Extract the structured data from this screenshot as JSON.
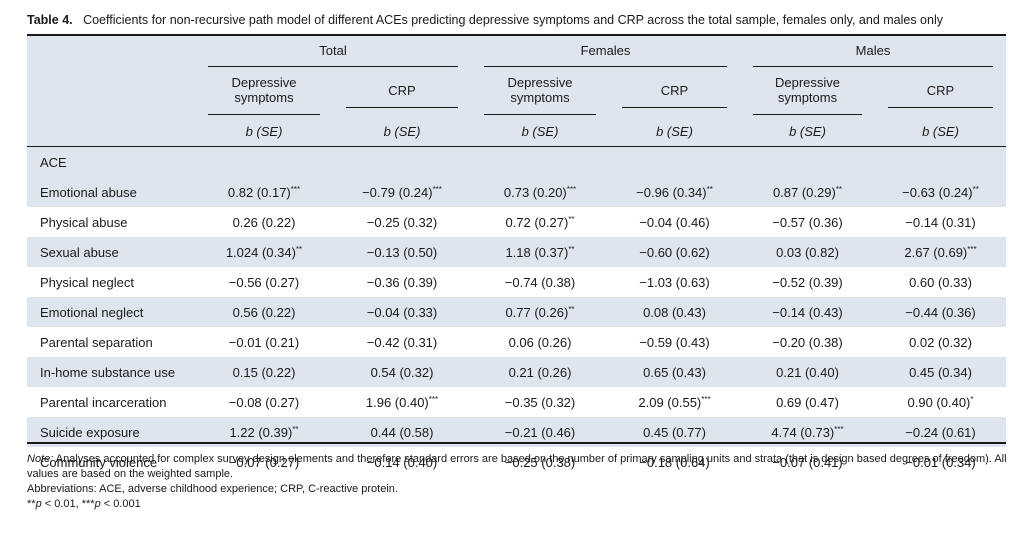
{
  "caption": {
    "label": "Table 4.",
    "text": "Coefficients for non-recursive path model of different ACEs predicting depressive symptoms and CRP across the total sample, females only, and males only"
  },
  "header": {
    "groups": [
      "Total",
      "Females",
      "Males"
    ],
    "outcomes": [
      "Depressive symptoms",
      "CRP",
      "Depressive symptoms",
      "CRP",
      "Depressive symptoms",
      "CRP"
    ],
    "b_label": "b",
    "se_label": "(SE)"
  },
  "section_label": "ACE",
  "rows": [
    {
      "label": "Emotional abuse",
      "values": [
        {
          "v": "0.82 (0.17)",
          "sig": "***"
        },
        {
          "v": "−0.79 (0.24)",
          "sig": "***"
        },
        {
          "v": "0.73 (0.20)",
          "sig": "***"
        },
        {
          "v": "−0.96 (0.34)",
          "sig": "**"
        },
        {
          "v": "0.87 (0.29)",
          "sig": "**"
        },
        {
          "v": "−0.63 (0.24)",
          "sig": "**"
        }
      ]
    },
    {
      "label": "Physical abuse",
      "values": [
        {
          "v": "0.26 (0.22)",
          "sig": ""
        },
        {
          "v": "−0.25 (0.32)",
          "sig": ""
        },
        {
          "v": "0.72 (0.27)",
          "sig": "**"
        },
        {
          "v": "−0.04 (0.46)",
          "sig": ""
        },
        {
          "v": "−0.57 (0.36)",
          "sig": ""
        },
        {
          "v": "−0.14 (0.31)",
          "sig": ""
        }
      ]
    },
    {
      "label": "Sexual abuse",
      "values": [
        {
          "v": "1.024 (0.34)",
          "sig": "**"
        },
        {
          "v": "−0.13 (0.50)",
          "sig": ""
        },
        {
          "v": "1.18 (0.37)",
          "sig": "**"
        },
        {
          "v": "−0.60 (0.62)",
          "sig": ""
        },
        {
          "v": "0.03 (0.82)",
          "sig": ""
        },
        {
          "v": "2.67 (0.69)",
          "sig": "***"
        }
      ]
    },
    {
      "label": "Physical neglect",
      "values": [
        {
          "v": "−0.56 (0.27)",
          "sig": ""
        },
        {
          "v": "−0.36 (0.39)",
          "sig": ""
        },
        {
          "v": "−0.74 (0.38)",
          "sig": ""
        },
        {
          "v": "−1.03 (0.63)",
          "sig": ""
        },
        {
          "v": "−0.52 (0.39)",
          "sig": ""
        },
        {
          "v": "0.60 (0.33)",
          "sig": ""
        }
      ]
    },
    {
      "label": "Emotional neglect",
      "values": [
        {
          "v": "0.56 (0.22)",
          "sig": ""
        },
        {
          "v": "−0.04 (0.33)",
          "sig": ""
        },
        {
          "v": "0.77 (0.26)",
          "sig": "**"
        },
        {
          "v": "0.08 (0.43)",
          "sig": ""
        },
        {
          "v": "−0.14 (0.43)",
          "sig": ""
        },
        {
          "v": "−0.44 (0.36)",
          "sig": ""
        }
      ]
    },
    {
      "label": "Parental separation",
      "values": [
        {
          "v": "−0.01 (0.21)",
          "sig": ""
        },
        {
          "v": "−0.42 (0.31)",
          "sig": ""
        },
        {
          "v": "0.06 (0.26)",
          "sig": ""
        },
        {
          "v": "−0.59 (0.43)",
          "sig": ""
        },
        {
          "v": "−0.20 (0.38)",
          "sig": ""
        },
        {
          "v": "0.02 (0.32)",
          "sig": ""
        }
      ]
    },
    {
      "label": "In-home substance use",
      "values": [
        {
          "v": "0.15 (0.22)",
          "sig": ""
        },
        {
          "v": "0.54 (0.32)",
          "sig": ""
        },
        {
          "v": "0.21 (0.26)",
          "sig": ""
        },
        {
          "v": "0.65 (0.43)",
          "sig": ""
        },
        {
          "v": "0.21 (0.40)",
          "sig": ""
        },
        {
          "v": "0.45 (0.34)",
          "sig": ""
        }
      ]
    },
    {
      "label": "Parental incarceration",
      "values": [
        {
          "v": "−0.08 (0.27)",
          "sig": ""
        },
        {
          "v": "1.96 (0.40)",
          "sig": "***"
        },
        {
          "v": "−0.35 (0.32)",
          "sig": ""
        },
        {
          "v": "2.09 (0.55)",
          "sig": "***"
        },
        {
          "v": "0.69 (0.47)",
          "sig": ""
        },
        {
          "v": "0.90 (0.40)",
          "sig": "*"
        }
      ]
    },
    {
      "label": "Suicide exposure",
      "values": [
        {
          "v": "1.22 (0.39)",
          "sig": "**"
        },
        {
          "v": "0.44 (0.58)",
          "sig": ""
        },
        {
          "v": "−0.21 (0.46)",
          "sig": ""
        },
        {
          "v": "0.45 (0.77)",
          "sig": ""
        },
        {
          "v": "4.74 (0.73)",
          "sig": "***"
        },
        {
          "v": "−0.24 (0.61)",
          "sig": ""
        }
      ]
    },
    {
      "label": "Community violence",
      "values": [
        {
          "v": "−0.07 (0.27)",
          "sig": ""
        },
        {
          "v": "−0.14 (0.40)",
          "sig": ""
        },
        {
          "v": "−0.25 (0.38)",
          "sig": ""
        },
        {
          "v": "−0.18 (0.64)",
          "sig": ""
        },
        {
          "v": "−0.07 (0.41)",
          "sig": ""
        },
        {
          "v": "−0.01 (0.34)",
          "sig": ""
        }
      ]
    }
  ],
  "notes": {
    "note_label": "Note:",
    "note_text": " Analyses accounted for complex survey design elements and therefore standard errors are based on the number of primary sampling units and strata (that is design based degrees of freedom). All values are based on the weighted sample.",
    "abbreviations": "Abbreviations: ACE, adverse childhood experience; CRP, C-reactive protein.",
    "sig_p1_marks": "**",
    "sig_p1_p": "p",
    "sig_p1_rest": " < 0.01, ",
    "sig_p2_marks": "***",
    "sig_p2_p": "p",
    "sig_p2_rest": " < 0.001"
  }
}
